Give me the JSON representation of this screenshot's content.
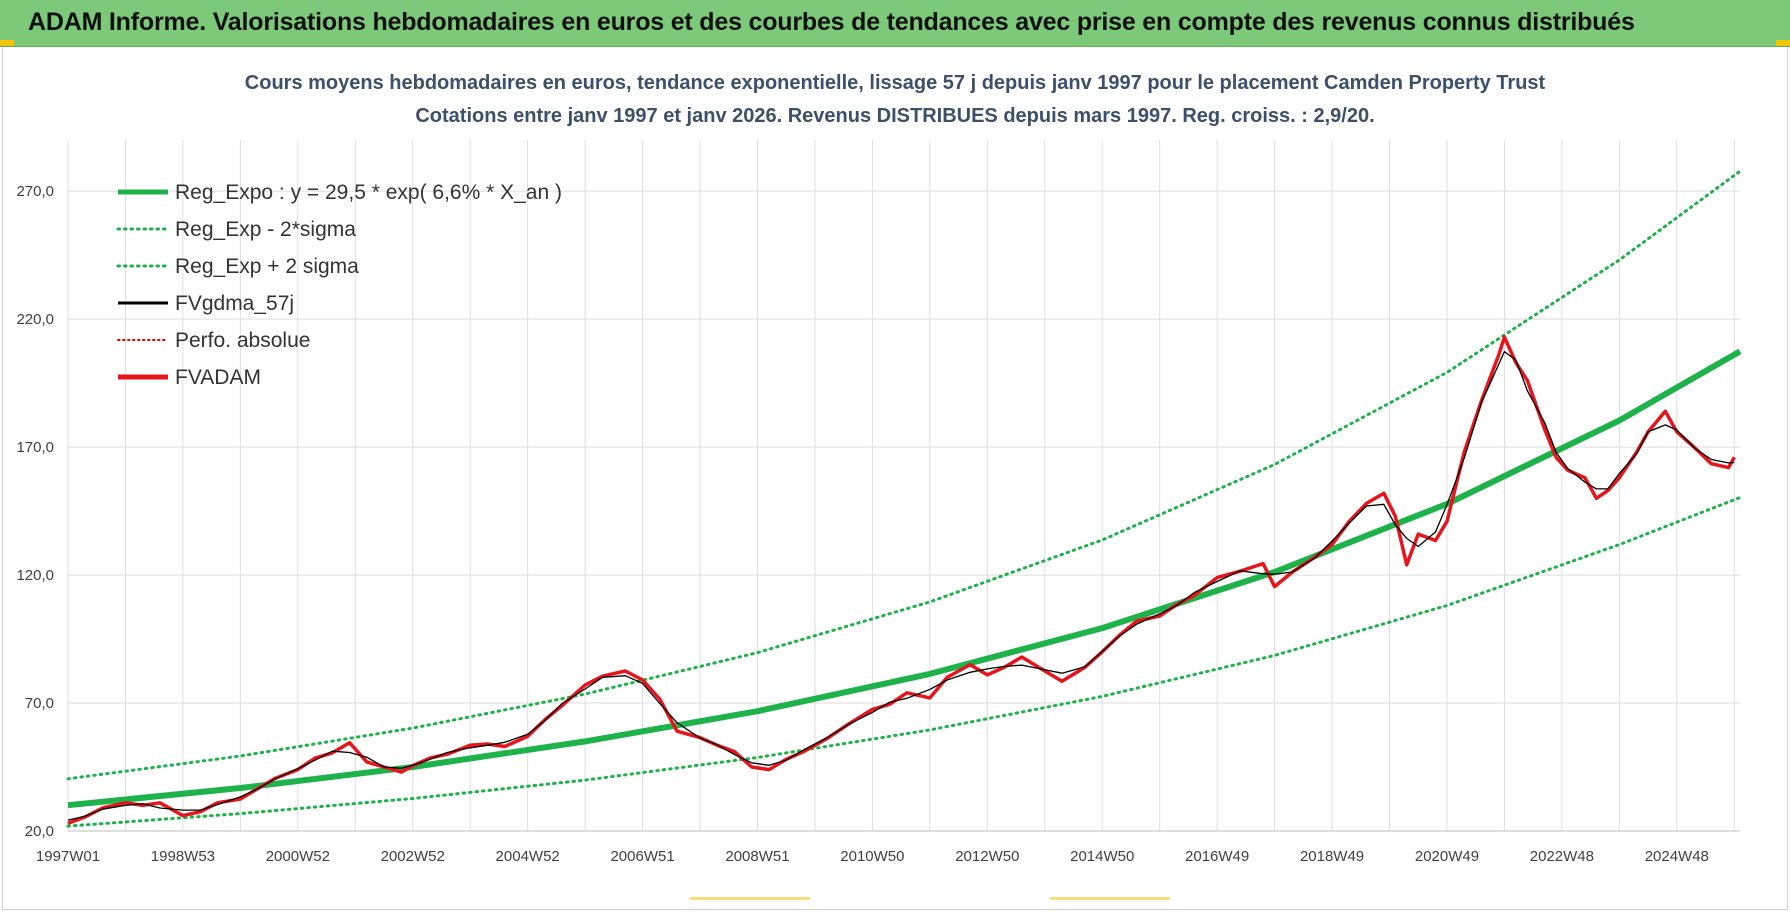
{
  "header": {
    "title": "ADAM Informe. Valorisations hebdomadaires en euros et des courbes de tendances avec prise en compte des revenus connus distribués"
  },
  "chart_data": {
    "type": "line",
    "title": "Cours moyens hebdomadaires en euros, tendance exponentielle, lissage 57 j depuis janv 1997 pour le placement Camden Property Trust",
    "subtitle": "Cotations entre janv 1997 et janv 2026. Revenus DISTRIBUES depuis mars 1997. Reg. croiss. : 2,9/20.",
    "xlabel": "",
    "ylabel": "",
    "x_tick_labels": [
      "1997W01",
      "1998W53",
      "2000W52",
      "2002W52",
      "2004W52",
      "2006W51",
      "2008W51",
      "2010W50",
      "2012W50",
      "2014W50",
      "2016W49",
      "2018W49",
      "2020W49",
      "2022W48",
      "2024W48"
    ],
    "x_tick_years": [
      1997.0,
      1999.0,
      2001.0,
      2003.0,
      2005.0,
      2007.0,
      2009.0,
      2011.0,
      2013.0,
      2015.0,
      2017.0,
      2019.0,
      2021.0,
      2023.0,
      2025.0
    ],
    "x_range": [
      1997.0,
      2026.1
    ],
    "y_tick_labels": [
      "20,0",
      "70,0",
      "120,0",
      "170,0",
      "220,0",
      "270,0"
    ],
    "y_ticks": [
      20,
      70,
      120,
      170,
      220,
      270
    ],
    "ylim": [
      20,
      290
    ],
    "grid": true,
    "legend_position": "top-left",
    "legend": [
      {
        "key": "reg",
        "label": "Reg_Expo : y = 29,5 * exp( 6,6% *  X_an )",
        "color": "#1db24a",
        "style": "solid-thick"
      },
      {
        "key": "lower",
        "label": "Reg_Exp - 2*sigma",
        "color": "#1db24a",
        "style": "dotted"
      },
      {
        "key": "upper",
        "label": "Reg_Exp + 2 sigma",
        "color": "#1db24a",
        "style": "dotted"
      },
      {
        "key": "smooth",
        "label": "FVgdma_57j",
        "color": "#000000",
        "style": "solid"
      },
      {
        "key": "perfo",
        "label": "Perfo. absolue",
        "color": "#e00000",
        "style": "dotted-thin"
      },
      {
        "key": "fvadam",
        "label": "FVADAM",
        "color": "#e8141c",
        "style": "solid-thick"
      }
    ],
    "series": [
      {
        "name": "Reg_Expo : y = 29,5 * exp( 6,6% *  X_an )",
        "x": [
          1997,
          2000,
          2003,
          2006,
          2009,
          2012,
          2015,
          2018,
          2021,
          2024,
          2026.1
        ],
        "values": [
          30.1,
          36.8,
          45.0,
          55.0,
          66.8,
          81.4,
          99.3,
          121.2,
          147.8,
          180.4,
          207.4
        ]
      },
      {
        "name": "Reg_Exp - 2*sigma",
        "x": [
          1997,
          2000,
          2003,
          2006,
          2009,
          2012,
          2015,
          2018,
          2021,
          2024,
          2026.1
        ],
        "values": [
          21.9,
          26.8,
          32.7,
          39.9,
          48.7,
          59.5,
          72.6,
          88.6,
          108.1,
          131.9,
          150.3
        ]
      },
      {
        "name": "Reg_Exp + 2 sigma",
        "x": [
          1997,
          2000,
          2003,
          2006,
          2009,
          2012,
          2015,
          2018,
          2021,
          2024,
          2026.1
        ],
        "values": [
          40.4,
          49.3,
          60.2,
          73.5,
          89.7,
          109.5,
          133.7,
          163.2,
          199.2,
          243.1,
          277.8
        ]
      },
      {
        "name": "FVADAM",
        "x": [
          1997.0,
          1997.3,
          1997.6,
          1998.0,
          1998.3,
          1998.6,
          1999.0,
          1999.3,
          1999.6,
          2000.0,
          2000.3,
          2000.6,
          2001.0,
          2001.3,
          2001.6,
          2001.9,
          2002.2,
          2002.5,
          2002.8,
          2003.0,
          2003.3,
          2003.6,
          2004.0,
          2004.3,
          2004.6,
          2005.0,
          2005.3,
          2005.6,
          2006.0,
          2006.3,
          2006.7,
          2007.0,
          2007.3,
          2007.6,
          2008.0,
          2008.3,
          2008.6,
          2008.9,
          2009.2,
          2009.5,
          2009.8,
          2010.2,
          2010.6,
          2011.0,
          2011.3,
          2011.6,
          2012.0,
          2012.3,
          2012.7,
          2013.0,
          2013.3,
          2013.6,
          2014.0,
          2014.3,
          2014.7,
          2015.0,
          2015.3,
          2015.6,
          2016.0,
          2016.3,
          2016.6,
          2017.0,
          2017.4,
          2017.8,
          2018.0,
          2018.3,
          2018.7,
          2019.0,
          2019.3,
          2019.6,
          2019.9,
          2020.1,
          2020.3,
          2020.5,
          2020.8,
          2021.0,
          2021.3,
          2021.6,
          2021.9,
          2022.0,
          2022.2,
          2022.4,
          2022.7,
          2022.9,
          2023.1,
          2023.4,
          2023.6,
          2023.8,
          2024.0,
          2024.3,
          2024.5,
          2024.8,
          2025.0,
          2025.3,
          2025.6,
          2025.9,
          2026.0
        ],
        "values": [
          23.0,
          25.5,
          29.0,
          31.0,
          30.0,
          31.0,
          26.0,
          27.5,
          31.0,
          32.5,
          36.5,
          40.5,
          44.0,
          48.5,
          50.5,
          54.5,
          47.0,
          45.0,
          43.0,
          45.5,
          48.5,
          50.0,
          53.5,
          54.0,
          53.0,
          57.0,
          63.5,
          69.0,
          77.0,
          80.5,
          82.5,
          79.0,
          71.5,
          59.0,
          56.5,
          53.5,
          51.0,
          45.0,
          44.0,
          48.0,
          51.0,
          56.0,
          62.0,
          67.5,
          69.5,
          74.0,
          72.0,
          80.0,
          85.0,
          81.0,
          84.0,
          88.0,
          82.5,
          78.5,
          84.0,
          90.0,
          96.5,
          102.0,
          104.0,
          108.5,
          112.0,
          119.0,
          121.5,
          124.5,
          115.5,
          121.0,
          127.0,
          132.0,
          141.0,
          148.0,
          152.0,
          143.0,
          124.0,
          136.0,
          133.5,
          141.0,
          168.0,
          188.0,
          206.0,
          213.0,
          203.0,
          196.0,
          177.0,
          166.0,
          161.0,
          158.0,
          150.0,
          153.0,
          158.0,
          168.0,
          176.0,
          184.0,
          176.0,
          170.0,
          163.5,
          162.0,
          166.0
        ]
      }
    ]
  }
}
